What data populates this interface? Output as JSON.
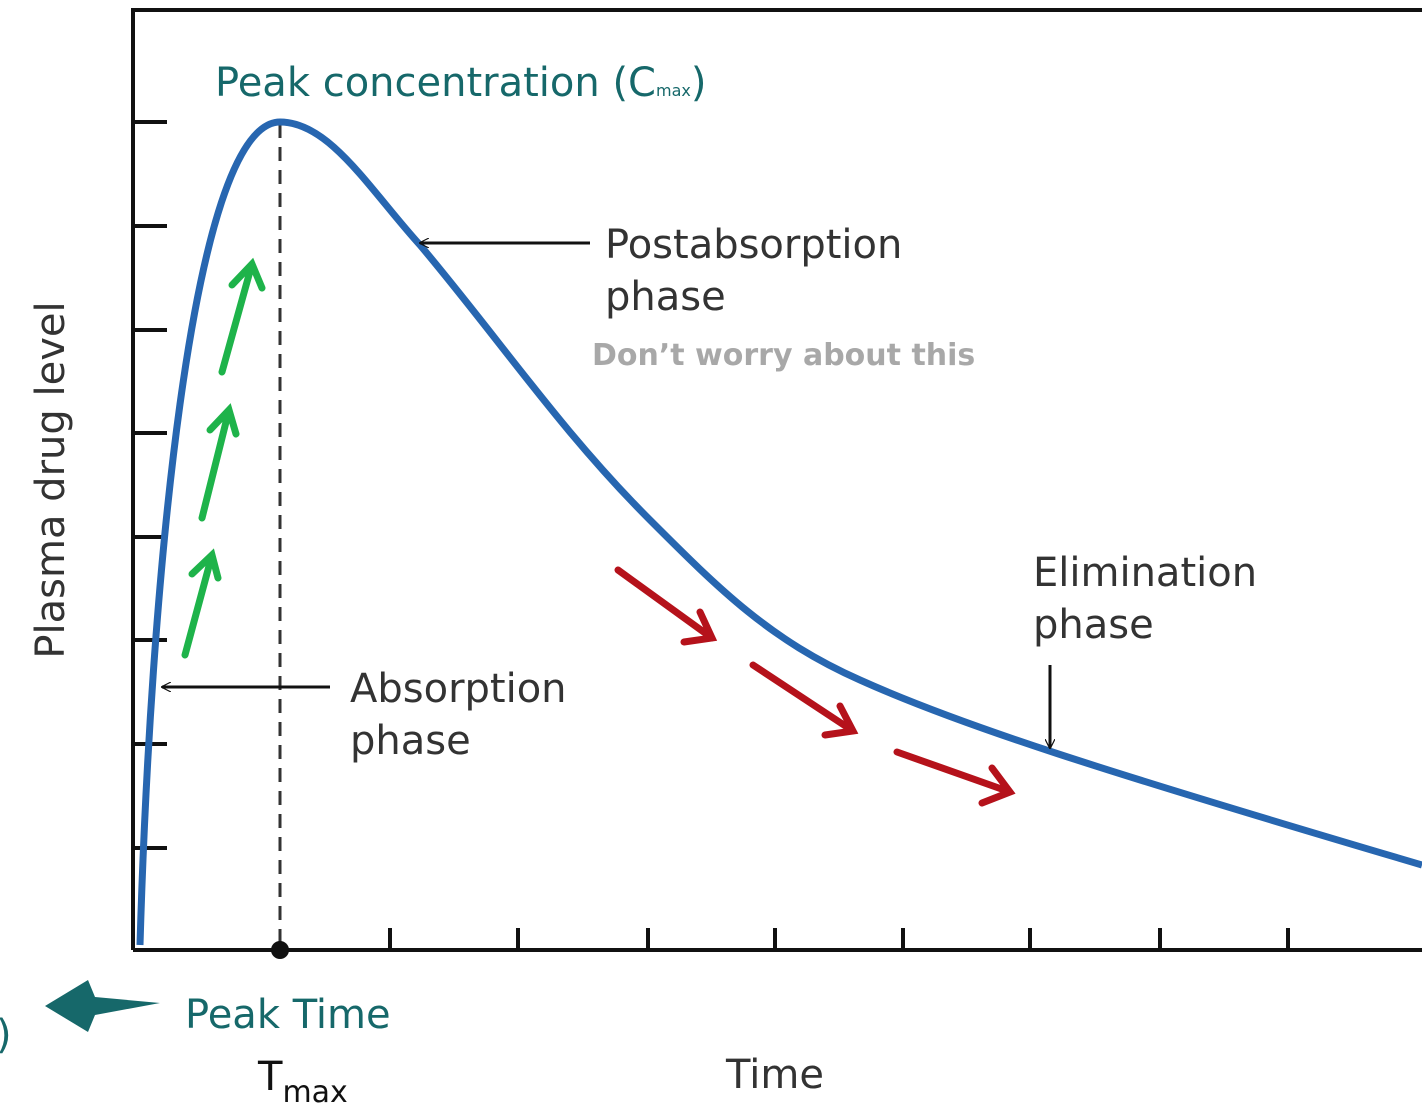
{
  "title": {
    "text": "Peak concentration (C",
    "subscript": "max",
    "close": ")"
  },
  "y_axis_label": "Plasma drug level",
  "x_axis_label": "Time",
  "annotations": [
    {
      "lines": [
        "Postabsorption",
        "phase"
      ]
    },
    {
      "text": "Don’t worry about this"
    },
    {
      "lines": [
        "Elimination",
        "phase"
      ]
    },
    {
      "lines": [
        "Absorption",
        "phase"
      ]
    }
  ],
  "peak_time": {
    "label": "Peak Time",
    "symbol": "T",
    "subscript": "max"
  },
  "edge_text": ")"
}
